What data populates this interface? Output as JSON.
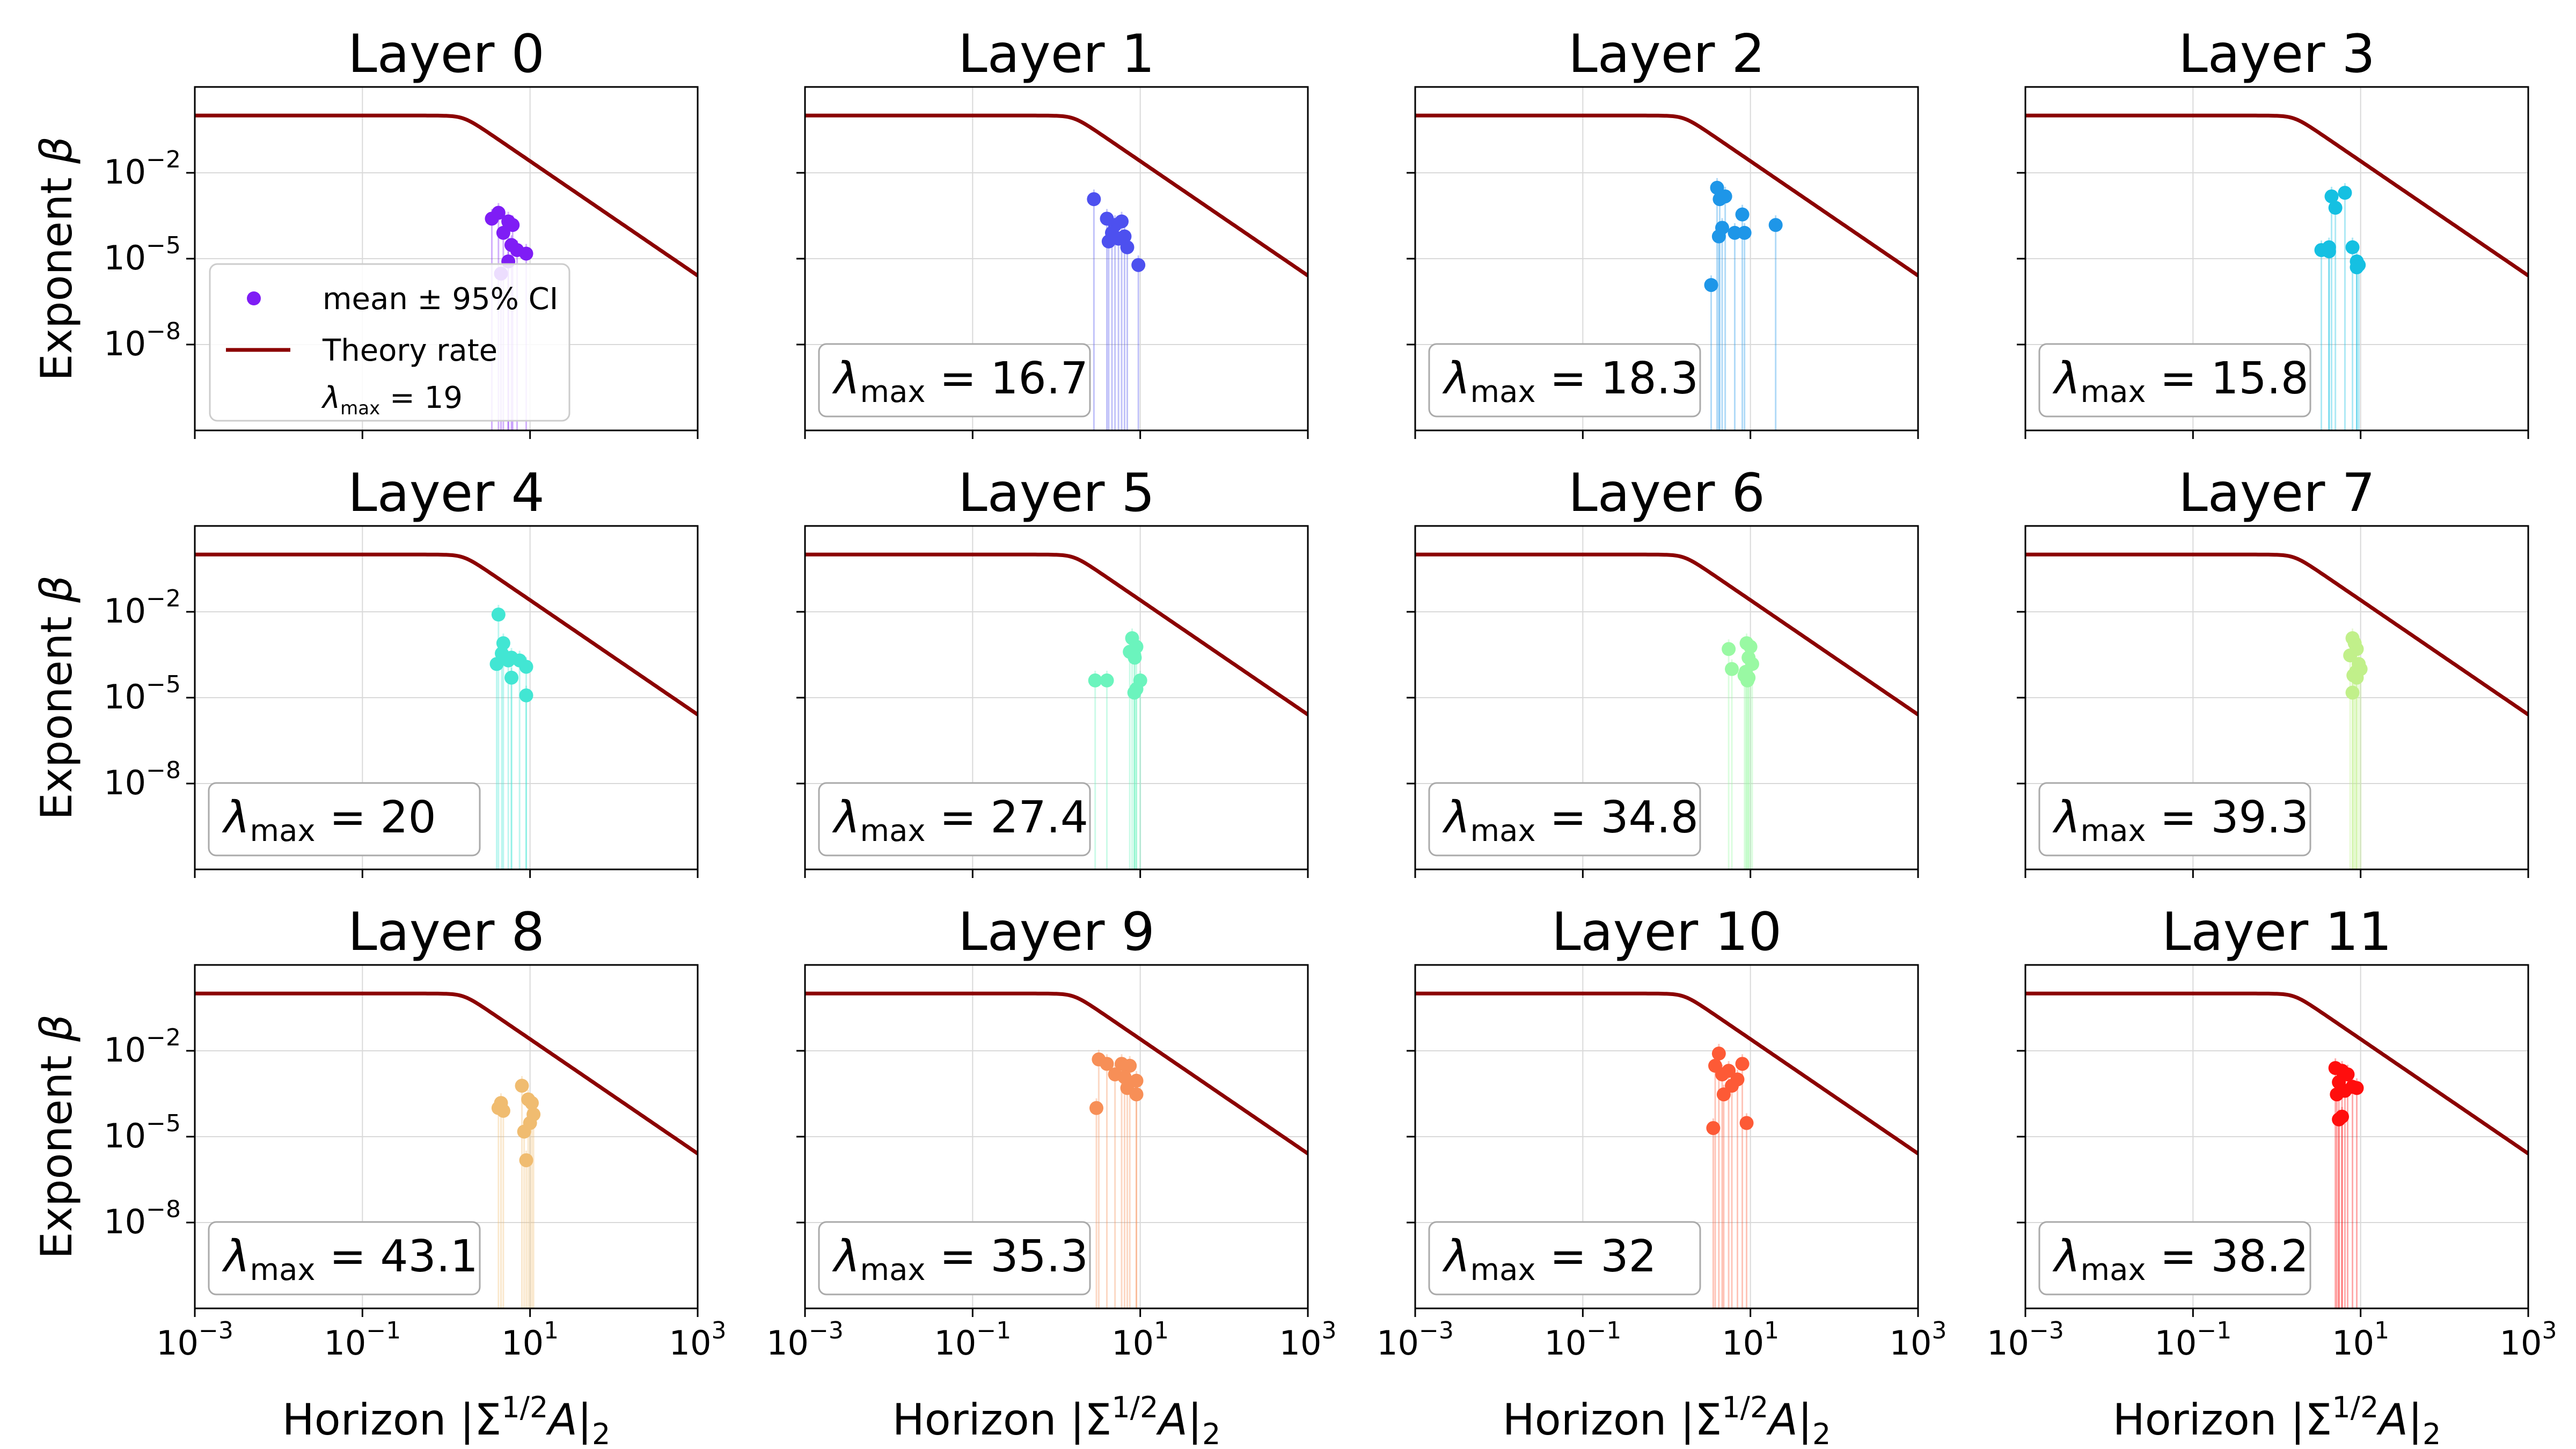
{
  "figure": {
    "legend": {
      "mean_label": "mean ± 95% CI",
      "theory_label": "Theory rate",
      "lambda_label": "λ",
      "lambda_sub": "max",
      "lambda_value": "= 19"
    },
    "lambda_symbol": "λ",
    "lambda_sub": "max",
    "ylabel_text": "Exponent ",
    "ylabel_symbol": "β",
    "xlabel_text": "Horizon |Σ",
    "xlabel_sup": "1/2",
    "xlabel_mid": "A|",
    "xlabel_sub": "2"
  },
  "chart_data": [
    {
      "type": "scatter",
      "title": "Layer 0",
      "xscale": "log",
      "yscale": "log",
      "xlim": [
        0.001,
        1000
      ],
      "ylim": [
        1e-11,
        10
      ],
      "color": "#7f1df5",
      "lambda_max": "19",
      "points": [
        [
          3.5,
          0.00025
        ],
        [
          4.2,
          0.0004
        ],
        [
          5.5,
          0.0002
        ],
        [
          4.8,
          8e-05
        ],
        [
          6.2,
          0.00015
        ],
        [
          6,
          3e-05
        ],
        [
          7,
          2e-05
        ],
        [
          9,
          1.5e-05
        ],
        [
          5.5,
          8e-06
        ],
        [
          4.5,
          3e-06
        ]
      ]
    },
    {
      "type": "scatter",
      "title": "Layer 1",
      "xscale": "log",
      "yscale": "log",
      "xlim": [
        0.001,
        1000
      ],
      "ylim": [
        1e-11,
        10
      ],
      "color": "#4d50ef",
      "lambda_max": "16.7",
      "points": [
        [
          2.8,
          0.0012
        ],
        [
          4,
          0.00025
        ],
        [
          5,
          0.00015
        ],
        [
          6,
          0.0002
        ],
        [
          4.6,
          8e-05
        ],
        [
          5.5,
          5e-05
        ],
        [
          6.5,
          6e-05
        ],
        [
          4.2,
          4e-05
        ],
        [
          7,
          2.5e-05
        ],
        [
          9.5,
          6e-06
        ]
      ]
    },
    {
      "type": "scatter",
      "title": "Layer 2",
      "xscale": "log",
      "yscale": "log",
      "xlim": [
        0.001,
        1000
      ],
      "ylim": [
        1e-11,
        10
      ],
      "color": "#1e96e8",
      "lambda_max": "18.3",
      "points": [
        [
          4,
          0.003
        ],
        [
          5,
          0.0015
        ],
        [
          4.3,
          0.0012
        ],
        [
          8,
          0.00035
        ],
        [
          4.6,
          0.00012
        ],
        [
          6.5,
          8e-05
        ],
        [
          8.5,
          8e-05
        ],
        [
          20,
          0.00015
        ],
        [
          4.2,
          6e-05
        ],
        [
          3.4,
          1.2e-06
        ]
      ]
    },
    {
      "type": "scatter",
      "title": "Layer 3",
      "xscale": "log",
      "yscale": "log",
      "xlim": [
        0.001,
        1000
      ],
      "ylim": [
        1e-11,
        10
      ],
      "color": "#15c0e2",
      "lambda_max": "15.8",
      "points": [
        [
          4.5,
          0.0015
        ],
        [
          6.5,
          0.002
        ],
        [
          5,
          0.0006
        ],
        [
          4.2,
          2.5e-05
        ],
        [
          3.4,
          2e-05
        ],
        [
          4.2,
          1.8e-05
        ],
        [
          8,
          2.5e-05
        ],
        [
          9,
          8e-06
        ],
        [
          9.5,
          6e-06
        ],
        [
          9,
          5e-06
        ]
      ]
    },
    {
      "type": "scatter",
      "title": "Layer 4",
      "xscale": "log",
      "yscale": "log",
      "xlim": [
        0.001,
        1000
      ],
      "ylim": [
        1e-11,
        10
      ],
      "color": "#42e6d3",
      "lambda_max": "20",
      "points": [
        [
          4.2,
          0.008
        ],
        [
          4.8,
          0.0008
        ],
        [
          4,
          0.00015
        ],
        [
          5.5,
          0.0002
        ],
        [
          4.6,
          0.00035
        ],
        [
          6,
          0.00025
        ],
        [
          7.5,
          0.0002
        ],
        [
          9,
          0.00012
        ],
        [
          6,
          5e-05
        ],
        [
          9,
          1.2e-05
        ]
      ]
    },
    {
      "type": "scatter",
      "title": "Layer 5",
      "xscale": "log",
      "yscale": "log",
      "xlim": [
        0.001,
        1000
      ],
      "ylim": [
        1e-11,
        10
      ],
      "color": "#6bf4bd",
      "lambda_max": "27.4",
      "points": [
        [
          8,
          0.0012
        ],
        [
          9,
          0.0006
        ],
        [
          8.5,
          0.0003
        ],
        [
          7.5,
          0.0004
        ],
        [
          8.6,
          0.00025
        ],
        [
          2.9,
          4e-05
        ],
        [
          4,
          4e-05
        ],
        [
          10,
          4e-05
        ],
        [
          9,
          2e-05
        ],
        [
          8.5,
          1.5e-05
        ]
      ]
    },
    {
      "type": "scatter",
      "title": "Layer 6",
      "xscale": "log",
      "yscale": "log",
      "xlim": [
        0.001,
        1000
      ],
      "ylim": [
        1e-11,
        10
      ],
      "color": "#99f9a3",
      "lambda_max": "34.8",
      "points": [
        [
          9,
          0.0008
        ],
        [
          5.5,
          0.0005
        ],
        [
          10,
          0.0006
        ],
        [
          6,
          0.0001
        ],
        [
          9.5,
          0.00025
        ],
        [
          10.5,
          0.00015
        ],
        [
          8.5,
          6e-05
        ],
        [
          9.2,
          4e-05
        ],
        [
          8.8,
          8e-05
        ],
        [
          9.5,
          5e-05
        ]
      ]
    },
    {
      "type": "scatter",
      "title": "Layer 7",
      "xscale": "log",
      "yscale": "log",
      "xlim": [
        0.001,
        1000
      ],
      "ylim": [
        1e-11,
        10
      ],
      "color": "#c1f08a",
      "lambda_max": "39.3",
      "points": [
        [
          8,
          0.0012
        ],
        [
          8.5,
          0.0008
        ],
        [
          9,
          0.0005
        ],
        [
          7.5,
          0.0003
        ],
        [
          9.5,
          0.00015
        ],
        [
          8.8,
          8e-05
        ],
        [
          10,
          0.0001
        ],
        [
          8.2,
          6e-05
        ],
        [
          9,
          5e-05
        ],
        [
          8,
          1.5e-05
        ]
      ]
    },
    {
      "type": "scatter",
      "title": "Layer 8",
      "xscale": "log",
      "yscale": "log",
      "xlim": [
        0.001,
        1000
      ],
      "ylim": [
        1e-11,
        10
      ],
      "color": "#f0bc70",
      "lambda_max": "43.1",
      "points": [
        [
          8,
          0.0006
        ],
        [
          9.5,
          0.0002
        ],
        [
          10.5,
          0.00015
        ],
        [
          4.5,
          0.00015
        ],
        [
          4.2,
          0.0001
        ],
        [
          4.8,
          8e-05
        ],
        [
          11,
          6e-05
        ],
        [
          10,
          3e-05
        ],
        [
          8.5,
          1.5e-05
        ],
        [
          9,
          1.5e-06
        ]
      ]
    },
    {
      "type": "scatter",
      "title": "Layer 9",
      "xscale": "log",
      "yscale": "log",
      "xlim": [
        0.001,
        1000
      ],
      "ylim": [
        1e-11,
        10
      ],
      "color": "#f78f57",
      "lambda_max": "35.3",
      "points": [
        [
          3.2,
          0.005
        ],
        [
          4,
          0.0035
        ],
        [
          6,
          0.0035
        ],
        [
          7.5,
          0.003
        ],
        [
          5,
          0.0015
        ],
        [
          6.5,
          0.0012
        ],
        [
          9,
          0.0009
        ],
        [
          7,
          0.0005
        ],
        [
          9,
          0.0003
        ],
        [
          3,
          0.0001
        ]
      ]
    },
    {
      "type": "scatter",
      "title": "Layer 10",
      "xscale": "log",
      "yscale": "log",
      "xlim": [
        0.001,
        1000
      ],
      "ylim": [
        1e-11,
        10
      ],
      "color": "#fd5a36",
      "lambda_max": "32",
      "points": [
        [
          4.2,
          0.008
        ],
        [
          3.8,
          0.003
        ],
        [
          4.6,
          0.0015
        ],
        [
          5.5,
          0.002
        ],
        [
          8,
          0.0035
        ],
        [
          7,
          0.001
        ],
        [
          6,
          0.0006
        ],
        [
          4.8,
          0.0003
        ],
        [
          9,
          3e-05
        ],
        [
          3.6,
          2e-05
        ]
      ]
    },
    {
      "type": "scatter",
      "title": "Layer 11",
      "xscale": "log",
      "yscale": "log",
      "xlim": [
        0.001,
        1000
      ],
      "ylim": [
        1e-11,
        10
      ],
      "color": "#ff0e0d",
      "lambda_max": "38.2",
      "points": [
        [
          5,
          0.0025
        ],
        [
          6,
          0.002
        ],
        [
          7,
          0.0015
        ],
        [
          5.5,
          0.0008
        ],
        [
          6.5,
          0.0004
        ],
        [
          8,
          0.00055
        ],
        [
          9,
          0.0005
        ],
        [
          5.2,
          0.0003
        ],
        [
          6,
          5e-05
        ],
        [
          5.5,
          4e-05
        ]
      ]
    }
  ]
}
